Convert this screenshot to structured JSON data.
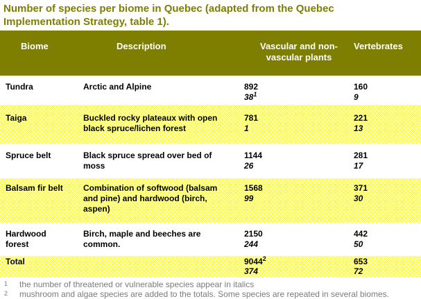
{
  "title": {
    "line1": "Number of species per biome in Quebec (adapted from the Quebec",
    "line2": "Implementation Strategy, table 1)."
  },
  "colors": {
    "olive_header": "#7E7E00",
    "title_text": "#7E7E00",
    "shaded_row_yellow": "#FFFF00",
    "footnote_gray": "#7B7B7B"
  },
  "table": {
    "headers": {
      "biome": "Biome",
      "description": "Description",
      "plants": "Vascular and non-vascular plants",
      "vertebrates": "Vertebrates"
    },
    "rows": [
      {
        "biome": "Tundra",
        "description": "Arctic and Alpine",
        "plants": "892",
        "plants_sup": "",
        "plants_threatened": "38",
        "plants_threatened_sup": "1",
        "vertebrates": "160",
        "vertebrates_threatened": "9"
      },
      {
        "biome": "Taiga",
        "description": "Buckled rocky plateaux with open black spruce/lichen forest",
        "plants": "781",
        "plants_sup": "",
        "plants_threatened": "1",
        "plants_threatened_sup": "",
        "vertebrates": "221",
        "vertebrates_threatened": "13"
      },
      {
        "biome": "Spruce belt",
        "description": "Black spruce spread over bed of moss",
        "plants": "1144",
        "plants_sup": "",
        "plants_threatened": "26",
        "plants_threatened_sup": "",
        "vertebrates": "281",
        "vertebrates_threatened": "17"
      },
      {
        "biome": "Balsam fir belt",
        "description": "Combination of softwood (balsam and pine) and hardwood (birch, aspen)",
        "plants": "1568",
        "plants_sup": "",
        "plants_threatened": "99",
        "plants_threatened_sup": "",
        "vertebrates": "371",
        "vertebrates_threatened": "30"
      },
      {
        "biome": "Hardwood forest",
        "description": "Birch, maple and beeches are common.",
        "plants": "2150",
        "plants_sup": "",
        "plants_threatened": "244",
        "plants_threatened_sup": "",
        "vertebrates": "442",
        "vertebrates_threatened": "50"
      },
      {
        "biome": "Total",
        "description": "",
        "plants": "9044",
        "plants_sup": "2",
        "plants_threatened": "374",
        "plants_threatened_sup": "",
        "vertebrates": "653",
        "vertebrates_threatened": "72"
      }
    ]
  },
  "footnotes": [
    {
      "marker": "1",
      "text": "the number of threatened or vulnerable species appear in italics"
    },
    {
      "marker": "2",
      "text": "mushroom and algae species are added to the totals. Some species are repeated in several biomes."
    }
  ]
}
